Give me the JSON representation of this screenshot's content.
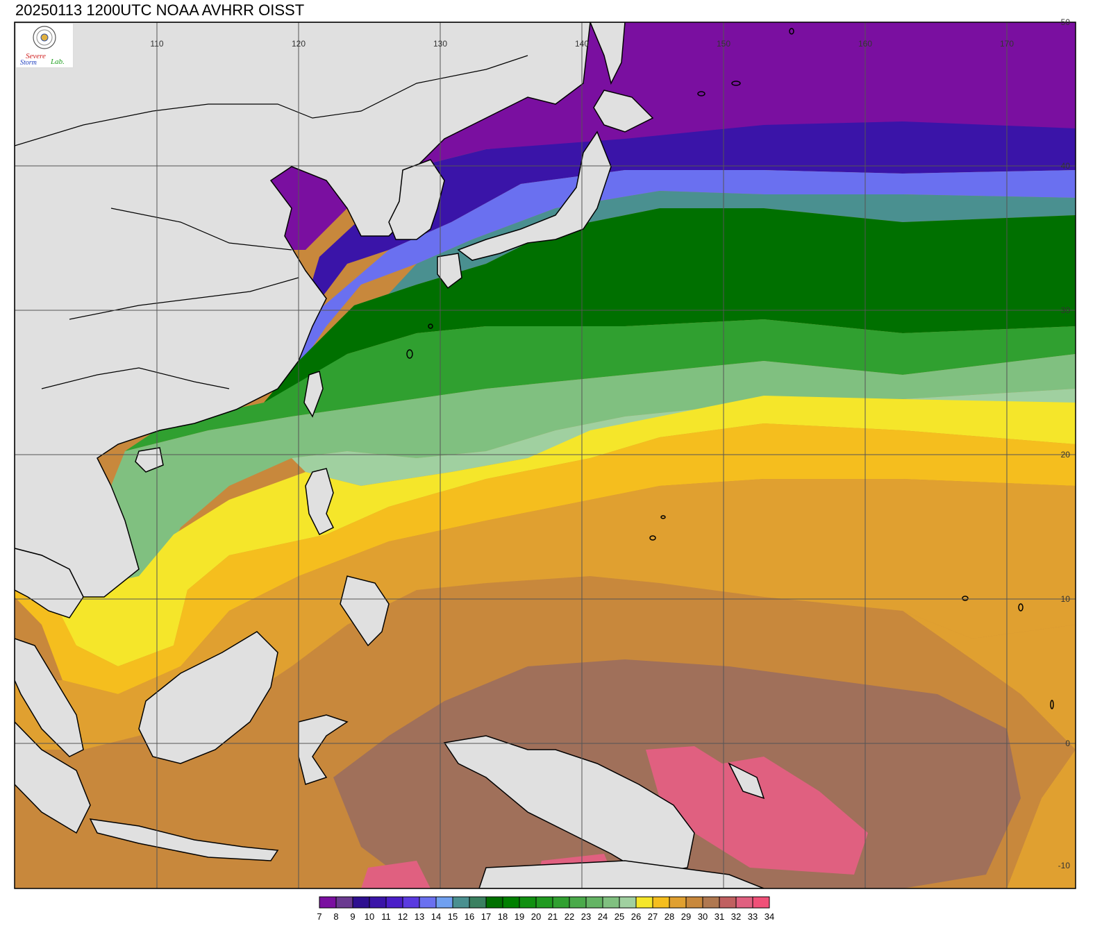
{
  "title": "20250113 1200UTC NOAA AVHRR OISST",
  "logo": {
    "emblem_icon": "seal-emblem-icon",
    "text_severe": "Severe",
    "text_storm": "Storm",
    "text_lab": "Lab."
  },
  "map": {
    "lon_labels": [
      "110",
      "120",
      "130",
      "140",
      "150",
      "160",
      "170"
    ],
    "lat_labels": [
      "50",
      "40",
      "30",
      "20",
      "10",
      "0",
      "-10"
    ],
    "land_color": "#e0e0e0",
    "coast_color": "#000000"
  },
  "colorbar": {
    "labels": [
      "7",
      "8",
      "9",
      "10",
      "11",
      "12",
      "13",
      "14",
      "15",
      "16",
      "17",
      "18",
      "19",
      "20",
      "21",
      "22",
      "23",
      "24",
      "25",
      "26",
      "27",
      "28",
      "29",
      "30",
      "31",
      "32",
      "33",
      "34"
    ],
    "colors": [
      "#7a0fa0",
      "#6a3a90",
      "#2e0f90",
      "#3a14a8",
      "#4a1ec8",
      "#5a3ae0",
      "#6a70f0",
      "#70a0f0",
      "#4a9090",
      "#3a8060",
      "#007000",
      "#008000",
      "#109010",
      "#209a20",
      "#30a030",
      "#4aaa4a",
      "#64b464",
      "#80c080",
      "#a0d0a0",
      "#f5e62a",
      "#f5be1e",
      "#e0a030",
      "#c8883c",
      "#b07850",
      "#c06060",
      "#e06080",
      "#f05078"
    ]
  }
}
